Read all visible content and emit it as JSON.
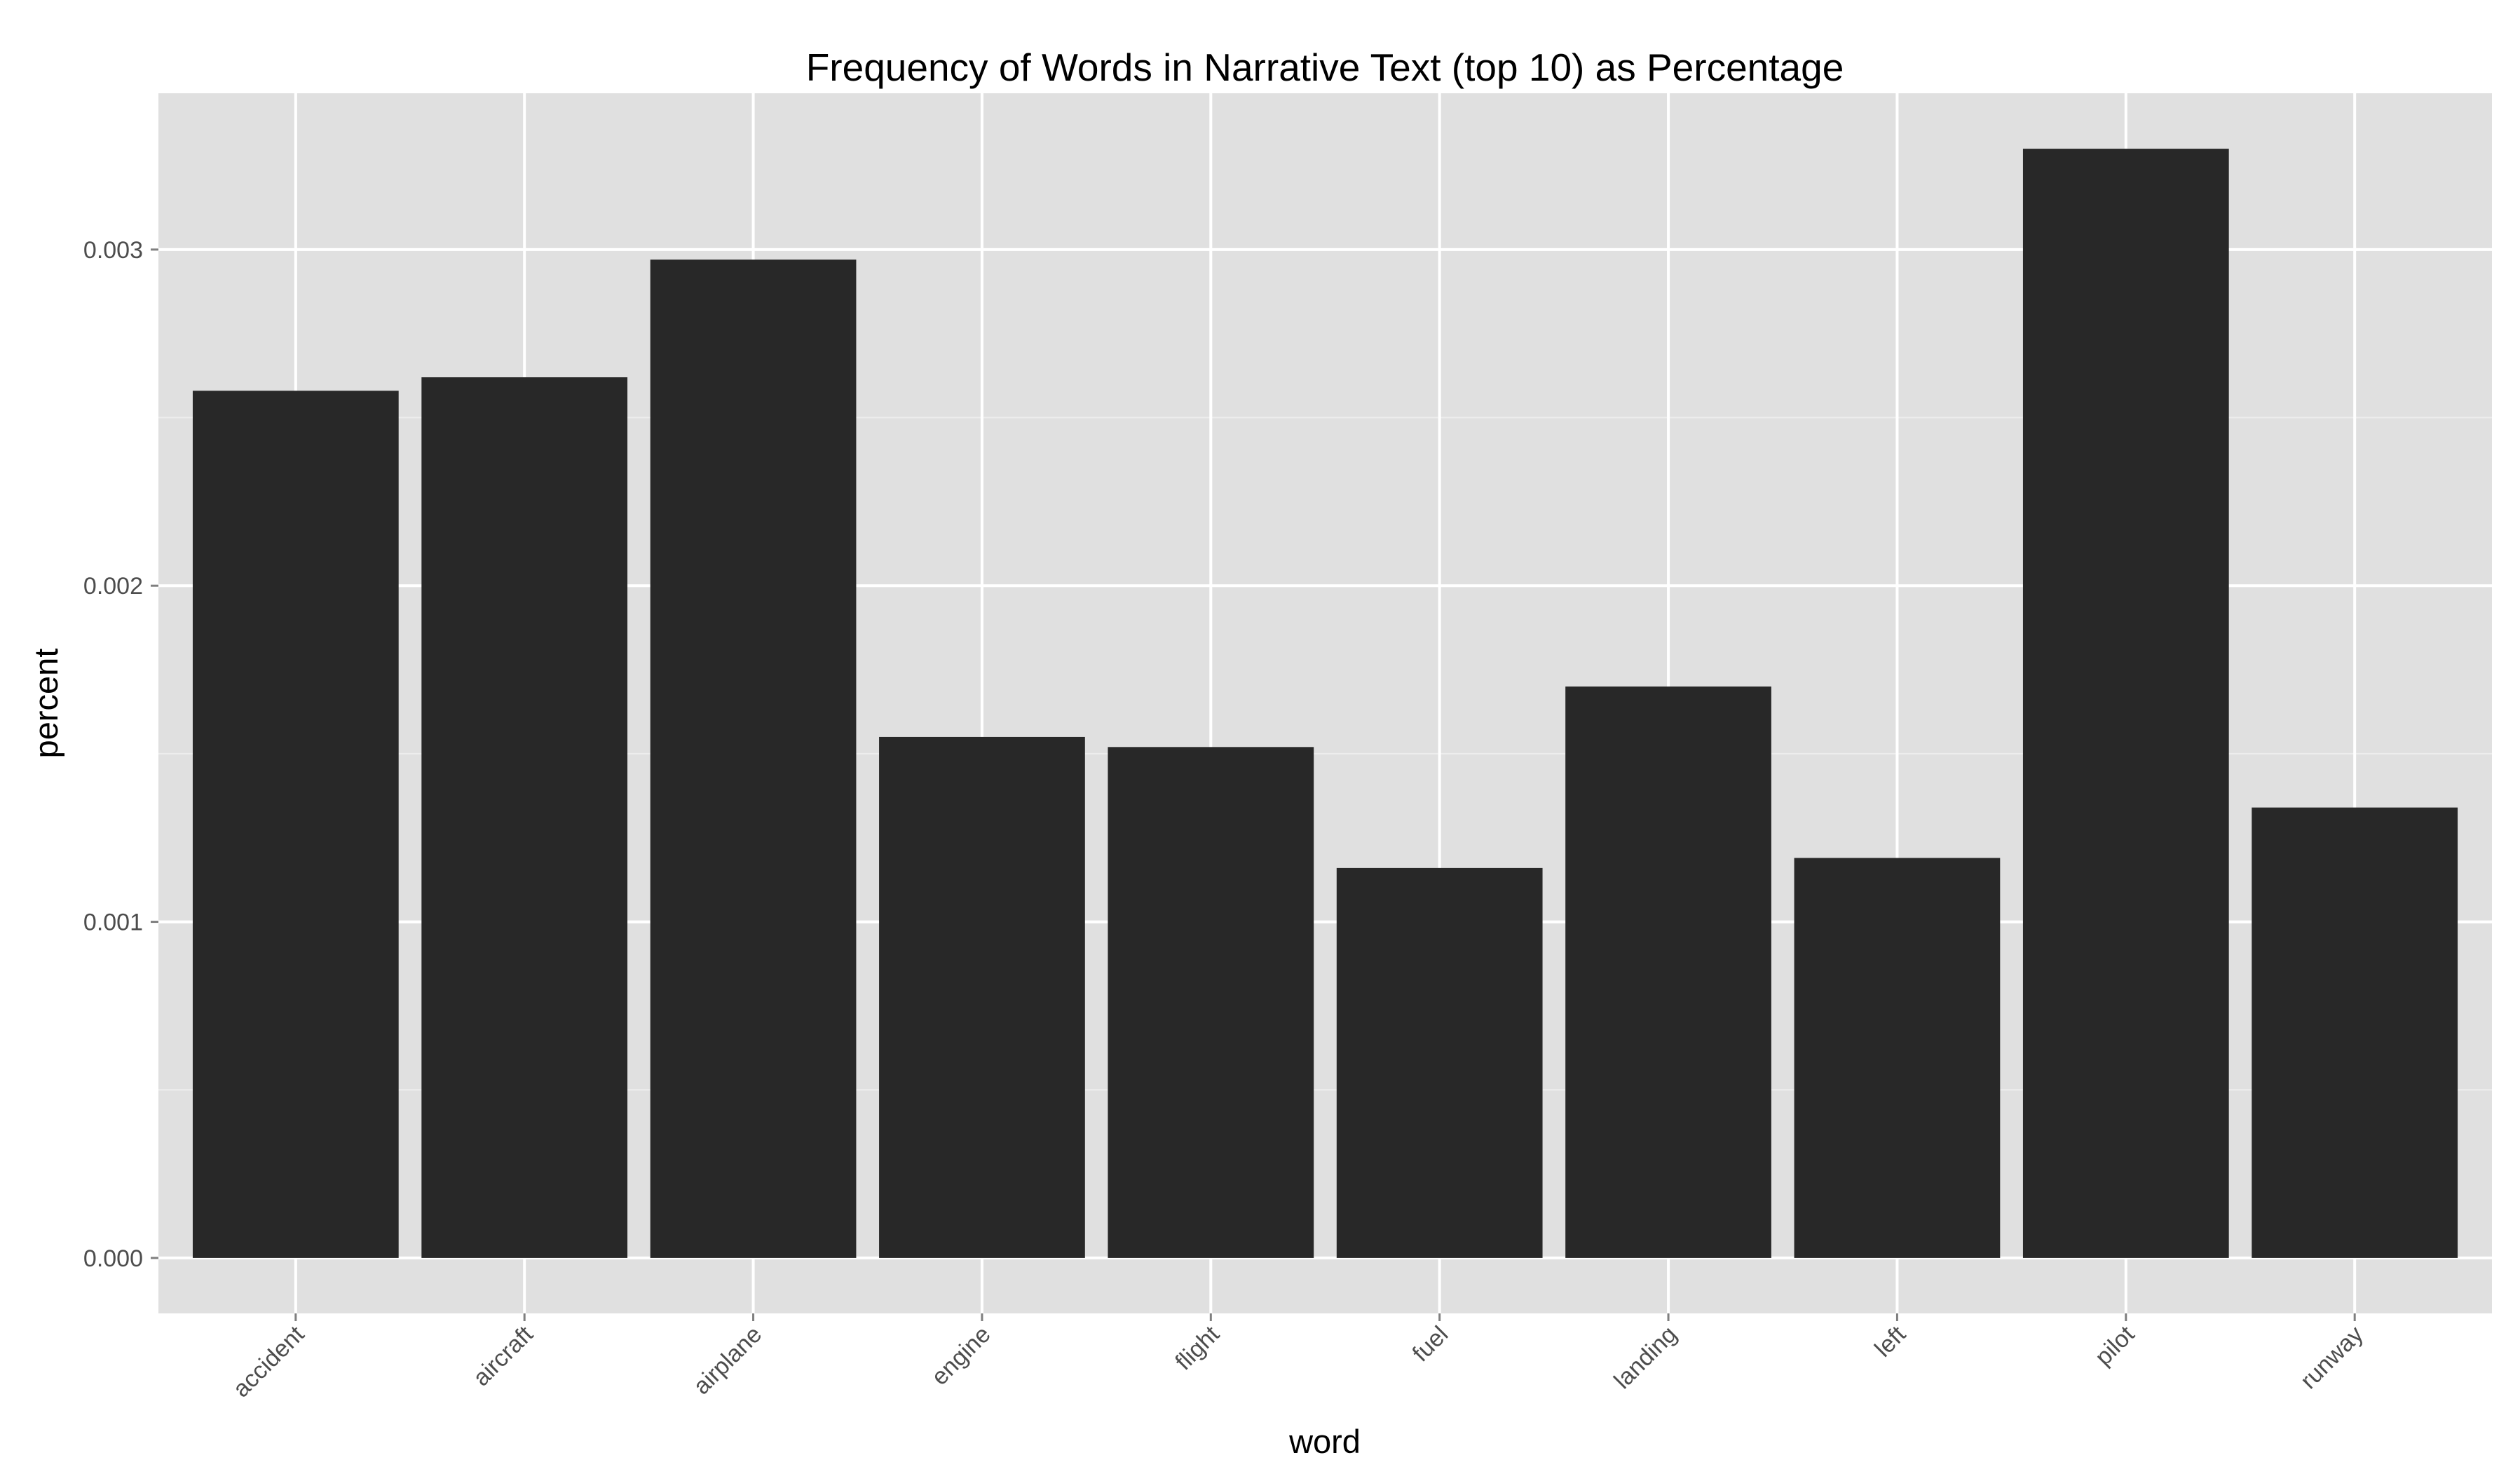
{
  "chart_data": {
    "type": "bar",
    "title": "Frequency of Words in Narrative Text (top 10) as Percentage",
    "xlabel": "word",
    "ylabel": "percent",
    "categories": [
      "accident",
      "aircraft",
      "airplane",
      "engine",
      "flight",
      "fuel",
      "landing",
      "left",
      "pilot",
      "runway"
    ],
    "values": [
      0.00258,
      0.00262,
      0.00297,
      0.00155,
      0.00152,
      0.00116,
      0.0017,
      0.00119,
      0.0033,
      0.00134
    ],
    "ylim": [
      -0.000165,
      0.003465
    ],
    "yticks": [
      0.0,
      0.001,
      0.002,
      0.003
    ],
    "ytick_labels": [
      "0.000",
      "0.001",
      "0.002",
      "0.003"
    ],
    "grid": true,
    "legend": "none",
    "colors": {
      "panel_background": "#e0e0e0",
      "grid_major": "#ffffff",
      "grid_minor": "#ededed",
      "bar_fill": "#282828",
      "tick_label": "#4d4d4d"
    }
  }
}
